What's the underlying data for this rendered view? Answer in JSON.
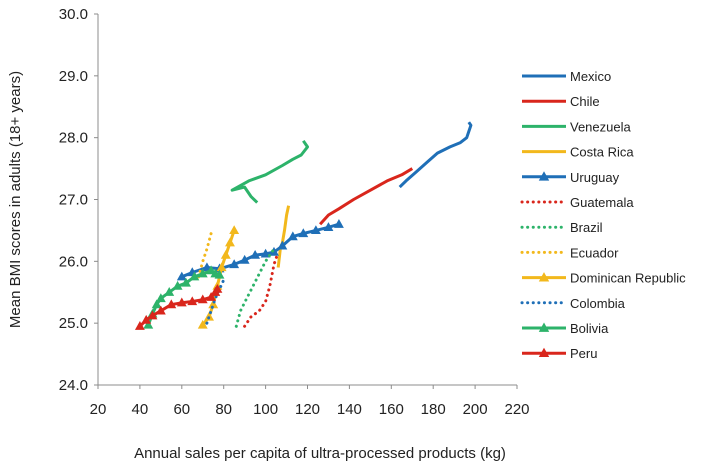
{
  "chart_data": {
    "type": "line",
    "title": "",
    "xlabel": "Annual sales per capita of ultra-processed products (kg)",
    "ylabel": "Mean BMI scores  in adults (18+ years)",
    "xlim": [
      20,
      220
    ],
    "ylim": [
      24.0,
      30.0
    ],
    "xticks": [
      20,
      40,
      60,
      80,
      100,
      120,
      140,
      160,
      180,
      200,
      220
    ],
    "yticks": [
      "24.0",
      "25.0",
      "26.0",
      "27.0",
      "28.0",
      "29.0",
      "30.0"
    ],
    "grid": false,
    "legend_position": "right",
    "series": [
      {
        "name": "Mexico",
        "color": "#1f6fb7",
        "style": "solid",
        "marker": "none",
        "points": [
          [
            164,
            27.2
          ],
          [
            167,
            27.3
          ],
          [
            172,
            27.45
          ],
          [
            177,
            27.6
          ],
          [
            182,
            27.75
          ],
          [
            188,
            27.85
          ],
          [
            193,
            27.92
          ],
          [
            196,
            28.0
          ],
          [
            197,
            28.1
          ],
          [
            198,
            28.2
          ],
          [
            197,
            28.25
          ]
        ]
      },
      {
        "name": "Chile",
        "color": "#d9261c",
        "style": "solid",
        "marker": "none",
        "points": [
          [
            126,
            26.6
          ],
          [
            130,
            26.75
          ],
          [
            135,
            26.85
          ],
          [
            142,
            27.0
          ],
          [
            150,
            27.15
          ],
          [
            158,
            27.3
          ],
          [
            165,
            27.4
          ],
          [
            170,
            27.5
          ]
        ]
      },
      {
        "name": "Venezuela",
        "color": "#2db36a",
        "style": "solid",
        "marker": "none",
        "points": [
          [
            96,
            26.95
          ],
          [
            93,
            27.05
          ],
          [
            90,
            27.2
          ],
          [
            84,
            27.15
          ],
          [
            92,
            27.3
          ],
          [
            100,
            27.4
          ],
          [
            108,
            27.55
          ],
          [
            113,
            27.65
          ],
          [
            117,
            27.72
          ],
          [
            120,
            27.85
          ],
          [
            118,
            27.95
          ]
        ]
      },
      {
        "name": "Costa Rica",
        "color": "#f2b81c",
        "style": "solid",
        "marker": "none",
        "points": [
          [
            106,
            25.9
          ],
          [
            107,
            26.2
          ],
          [
            108,
            26.3
          ],
          [
            109,
            26.5
          ],
          [
            110,
            26.75
          ],
          [
            111,
            26.9
          ]
        ]
      },
      {
        "name": "Uruguay",
        "color": "#1f6fb7",
        "style": "solid",
        "marker": "triangle",
        "points": [
          [
            60,
            25.75
          ],
          [
            65,
            25.82
          ],
          [
            72,
            25.9
          ],
          [
            78,
            25.88
          ],
          [
            85,
            25.95
          ],
          [
            90,
            26.02
          ],
          [
            95,
            26.1
          ],
          [
            100,
            26.12
          ],
          [
            104,
            26.15
          ],
          [
            108,
            26.25
          ],
          [
            113,
            26.4
          ],
          [
            118,
            26.45
          ],
          [
            124,
            26.5
          ],
          [
            130,
            26.55
          ],
          [
            135,
            26.6
          ]
        ]
      },
      {
        "name": "Guatemala",
        "color": "#d9261c",
        "style": "dotted",
        "marker": "none",
        "points": [
          [
            90,
            24.95
          ],
          [
            93,
            25.1
          ],
          [
            97,
            25.2
          ],
          [
            100,
            25.35
          ],
          [
            102,
            25.6
          ],
          [
            104,
            25.95
          ],
          [
            106,
            26.15
          ]
        ]
      },
      {
        "name": "Brazil",
        "color": "#2db36a",
        "style": "dotted",
        "marker": "none",
        "points": [
          [
            86,
            24.95
          ],
          [
            88,
            25.2
          ],
          [
            91,
            25.4
          ],
          [
            94,
            25.6
          ],
          [
            97,
            25.8
          ],
          [
            100,
            26.0
          ],
          [
            104,
            26.2
          ]
        ]
      },
      {
        "name": "Ecuador",
        "color": "#f2b81c",
        "style": "dotted",
        "marker": "none",
        "points": [
          [
            68,
            25.75
          ],
          [
            70,
            26.0
          ],
          [
            72,
            26.2
          ],
          [
            74,
            26.45
          ]
        ]
      },
      {
        "name": "Dominican Republic",
        "color": "#f2b81c",
        "style": "solid",
        "marker": "triangle",
        "points": [
          [
            70,
            24.97
          ],
          [
            73,
            25.1
          ],
          [
            75,
            25.3
          ],
          [
            77,
            25.6
          ],
          [
            79,
            25.9
          ],
          [
            81,
            26.1
          ],
          [
            83,
            26.3
          ],
          [
            85,
            26.5
          ]
        ]
      },
      {
        "name": "Colombia",
        "color": "#1f6fb7",
        "style": "dotted",
        "marker": "none",
        "points": [
          [
            72,
            25.0
          ],
          [
            74,
            25.2
          ],
          [
            76,
            25.4
          ],
          [
            78,
            25.55
          ],
          [
            80,
            25.7
          ]
        ]
      },
      {
        "name": "Bolivia",
        "color": "#2db36a",
        "style": "solid",
        "marker": "triangle",
        "points": [
          [
            44,
            24.97
          ],
          [
            46,
            25.15
          ],
          [
            48,
            25.3
          ],
          [
            50,
            25.4
          ],
          [
            54,
            25.5
          ],
          [
            58,
            25.6
          ],
          [
            62,
            25.65
          ],
          [
            66,
            25.75
          ],
          [
            70,
            25.8
          ],
          [
            74,
            25.85
          ],
          [
            76,
            25.8
          ],
          [
            78,
            25.78
          ]
        ]
      },
      {
        "name": "Peru",
        "color": "#d9261c",
        "style": "solid",
        "marker": "triangle",
        "points": [
          [
            40,
            24.95
          ],
          [
            43,
            25.05
          ],
          [
            46,
            25.12
          ],
          [
            50,
            25.2
          ],
          [
            55,
            25.3
          ],
          [
            60,
            25.33
          ],
          [
            65,
            25.35
          ],
          [
            70,
            25.38
          ],
          [
            74,
            25.42
          ],
          [
            76,
            25.5
          ],
          [
            77,
            25.55
          ]
        ]
      }
    ]
  }
}
